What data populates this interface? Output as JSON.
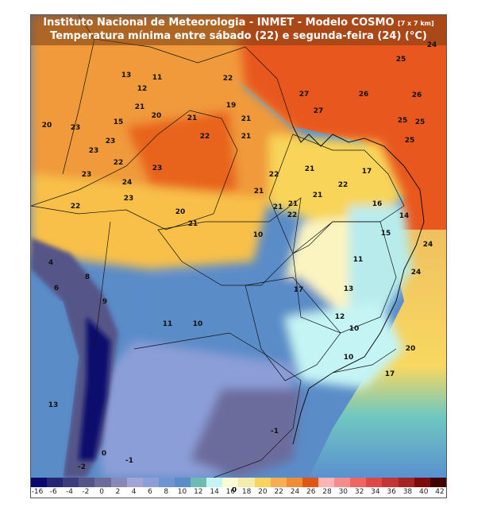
{
  "header": {
    "title_main": "Instituto Nacional de Meteorologia - INMET - Modelo COSMO",
    "title_resolution": "[7 x 7 km]",
    "subtitle": "Temperatura mínima entre sábado (22) e segunda-feira (24) (°C)"
  },
  "map_labels": [
    "24",
    "25",
    "13",
    "11",
    "22",
    "12",
    "21",
    "19",
    "20",
    "21",
    "27",
    "26",
    "26",
    "27",
    "20",
    "15",
    "25",
    "25",
    "23",
    "21",
    "22",
    "21",
    "23",
    "25",
    "23",
    "22",
    "21",
    "17",
    "23",
    "23",
    "24",
    "22",
    "21",
    "22",
    "21",
    "16",
    "23",
    "22",
    "21",
    "21",
    "20",
    "14",
    "22",
    "21",
    "15",
    "24",
    "11",
    "10",
    "4",
    "24",
    "17",
    "13",
    "8",
    "10",
    "11",
    "12",
    "9",
    "10",
    "20",
    "6",
    "10",
    "17",
    "13",
    "0",
    "-1",
    "-2",
    "-1",
    "0"
  ],
  "colorbar": {
    "colors": [
      "#0a0a6e",
      "#252575",
      "#3c3c7c",
      "#545488",
      "#6c6c9c",
      "#8888b8",
      "#a4a4d4",
      "#8c9ed8",
      "#6f94d4",
      "#5a8cc8",
      "#6cbcb4",
      "#c4f4f4",
      "#fcfcd4",
      "#f4ecac",
      "#f8d45c",
      "#f8ac54",
      "#f08c38",
      "#e05414",
      "#fcb4b4",
      "#f48c8c",
      "#f06464",
      "#e04848",
      "#c43434",
      "#a42424",
      "#7c0c0c",
      "#400000"
    ],
    "tick_labels": [
      "-16",
      "-6",
      "-4",
      "-2",
      "0",
      "2",
      "4",
      "6",
      "8",
      "10",
      "12",
      "14",
      "16",
      "18",
      "20",
      "22",
      "24",
      "26",
      "28",
      "30",
      "32",
      "34",
      "36",
      "38",
      "40",
      "42"
    ]
  }
}
